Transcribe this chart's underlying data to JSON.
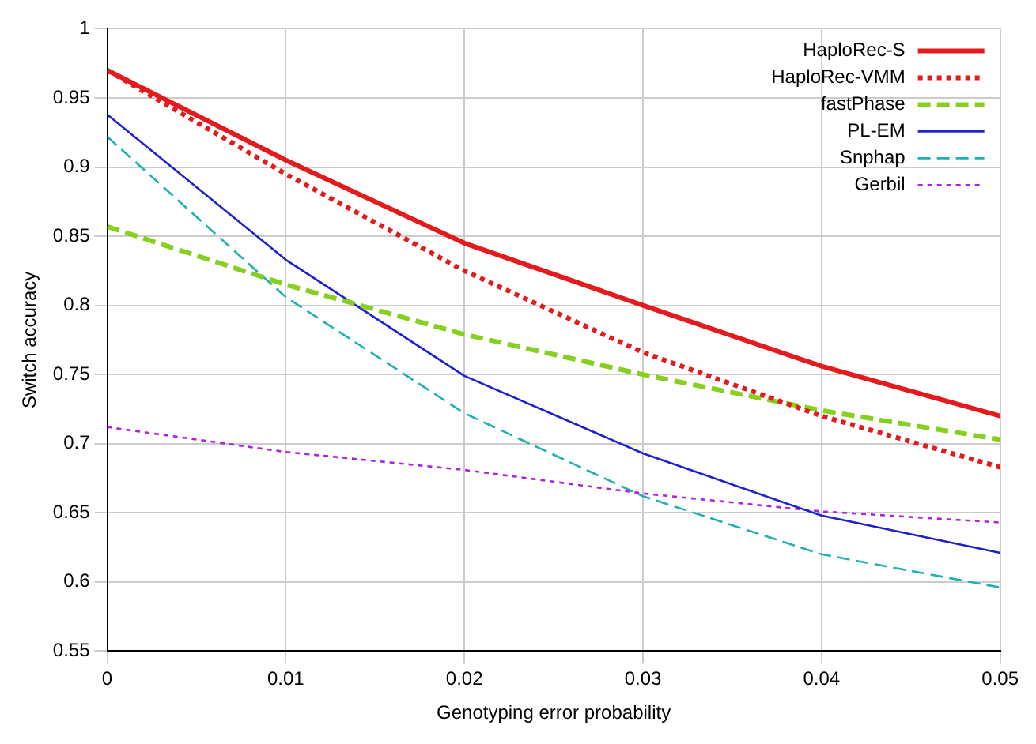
{
  "chart_data": {
    "type": "line",
    "xlabel": "Genotyping error probability",
    "ylabel": "Switch accuracy",
    "x": [
      0,
      0.01,
      0.02,
      0.03,
      0.04,
      0.05
    ],
    "xlim": [
      0,
      0.05
    ],
    "xticks": [
      0,
      0.01,
      0.02,
      0.03,
      0.04,
      0.05
    ],
    "ylim": [
      0.55,
      1
    ],
    "yticks": [
      0.55,
      0.6,
      0.65,
      0.7,
      0.75,
      0.8,
      0.85,
      0.9,
      0.95,
      1
    ],
    "grid": true,
    "legend": "top right",
    "marker": "none",
    "series": [
      {
        "name": "HaploRec-S",
        "color": "#e41a1c",
        "line_style": "solid",
        "values": [
          0.97,
          0.905,
          0.845,
          0.8,
          0.756,
          0.72
        ]
      },
      {
        "name": "HaploRec-VMM",
        "color": "#e41a1c",
        "line_style": "dotted",
        "values": [
          0.97,
          0.895,
          0.825,
          0.766,
          0.72,
          0.683
        ]
      },
      {
        "name": "fastPhase",
        "color": "#88d020",
        "line_style": "dashed",
        "values": [
          0.857,
          0.815,
          0.779,
          0.75,
          0.724,
          0.703
        ]
      },
      {
        "name": "PL-EM",
        "color": "#2020d0",
        "line_style": "solid",
        "values": [
          0.938,
          0.833,
          0.749,
          0.693,
          0.648,
          0.621
        ]
      },
      {
        "name": "Snphap",
        "color": "#20b0b0",
        "line_style": "dashed",
        "values": [
          0.922,
          0.806,
          0.722,
          0.662,
          0.62,
          0.596
        ]
      },
      {
        "name": "Gerbil",
        "color": "#b020e0",
        "line_style": "dotted",
        "values": [
          0.712,
          0.694,
          0.681,
          0.664,
          0.651,
          0.643
        ]
      }
    ]
  }
}
